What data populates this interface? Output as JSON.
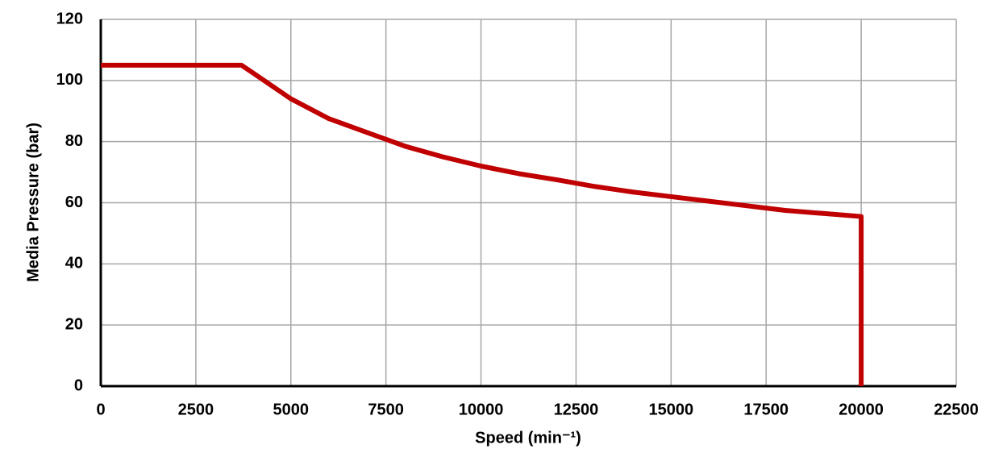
{
  "chart_data": {
    "type": "line",
    "x_label": "Speed (min⁻¹)",
    "y_label": "Media Pressure (bar)",
    "x": [
      0,
      3700,
      4000,
      5000,
      6000,
      7000,
      8000,
      9000,
      10000,
      11000,
      12000,
      13000,
      14000,
      15000,
      16000,
      17000,
      18000,
      19000,
      20000,
      20000
    ],
    "series": [
      {
        "name": "Media Pressure",
        "color": "#c00000",
        "values": [
          105,
          105,
          102.5,
          94,
          87.5,
          83,
          78.5,
          75,
          72,
          69.5,
          67.5,
          65.3,
          63.5,
          62,
          60.5,
          59,
          57.5,
          56.5,
          55.5,
          0
        ]
      }
    ],
    "xlim": [
      0,
      22500
    ],
    "xticks": [
      0,
      2500,
      5000,
      7500,
      10000,
      12500,
      15000,
      17500,
      20000,
      22500
    ],
    "ylim": [
      0,
      120
    ],
    "yticks": [
      0,
      20,
      40,
      60,
      80,
      100,
      120
    ],
    "grid": true
  }
}
